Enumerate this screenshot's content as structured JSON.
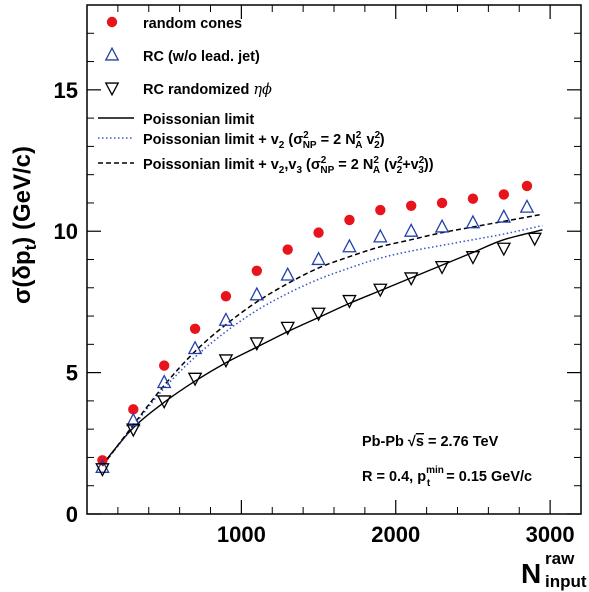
{
  "chart_data": {
    "type": "scatter",
    "xlim": [
      0,
      3200
    ],
    "ylim": [
      0,
      18
    ],
    "x_ticks": [
      1000,
      2000,
      3000
    ],
    "x_tick_labels": [
      "1000",
      "2000",
      "3000"
    ],
    "y_ticks": [
      0,
      5,
      10,
      15
    ],
    "y_tick_labels": [
      "0",
      "5",
      "10",
      "15"
    ],
    "ylabel": {
      "main": "σ(δp",
      "sub": "t",
      "tail": ") (GeV/c)"
    },
    "xlabel": {
      "main": "N",
      "sup": "raw",
      "sub": "input"
    },
    "series": [
      {
        "name": "random cones",
        "kind": "marker",
        "marker": "filled-circle",
        "color": "#e8141c",
        "x": [
          100,
          300,
          500,
          700,
          900,
          1100,
          1300,
          1500,
          1700,
          1900,
          2100,
          2300,
          2500,
          2700,
          2850
        ],
        "y": [
          1.9,
          3.7,
          5.25,
          6.55,
          7.7,
          8.6,
          9.35,
          9.95,
          10.4,
          10.75,
          10.9,
          11.0,
          11.15,
          11.3,
          11.6
        ]
      },
      {
        "name": "RC (w/o lead. jet)",
        "kind": "marker",
        "marker": "open-triangle-up",
        "color": "#2440a8",
        "x": [
          100,
          300,
          500,
          700,
          900,
          1100,
          1300,
          1500,
          1700,
          1900,
          2100,
          2300,
          2500,
          2700,
          2850
        ],
        "y": [
          1.65,
          3.3,
          4.65,
          5.85,
          6.85,
          7.75,
          8.45,
          9.0,
          9.45,
          9.8,
          10.0,
          10.15,
          10.3,
          10.5,
          10.85
        ]
      },
      {
        "name": "RC randomized ηϕ",
        "name_prefix": "RC randomized ",
        "name_symbol": "ηϕ",
        "kind": "marker",
        "marker": "open-triangle-down",
        "color": "#000000",
        "x": [
          100,
          300,
          500,
          700,
          900,
          1100,
          1300,
          1500,
          1700,
          1900,
          2100,
          2300,
          2500,
          2700,
          2900
        ],
        "y": [
          1.6,
          3.0,
          4.0,
          4.8,
          5.45,
          6.05,
          6.6,
          7.1,
          7.55,
          7.95,
          8.35,
          8.75,
          9.1,
          9.4,
          9.75
        ]
      },
      {
        "name": "Poissonian limit",
        "kind": "line",
        "style": "solid",
        "color": "#000000",
        "x": [
          100,
          300,
          500,
          700,
          900,
          1100,
          1300,
          1500,
          1700,
          1900,
          2100,
          2300,
          2500,
          2700,
          2950
        ],
        "y": [
          1.75,
          3.05,
          3.95,
          4.7,
          5.35,
          5.9,
          6.45,
          6.95,
          7.45,
          7.9,
          8.35,
          8.8,
          9.25,
          9.7,
          10.05
        ]
      },
      {
        "name": "Poissonian limit + v2 (σ²NP = 2 N²A v²2)",
        "kind": "line",
        "style": "dotted",
        "color": "#3355cc",
        "x": [
          100,
          300,
          500,
          700,
          900,
          1100,
          1300,
          1500,
          1700,
          1900,
          2100,
          2300,
          2500,
          2700,
          2950
        ],
        "y": [
          1.7,
          3.1,
          4.45,
          5.55,
          6.45,
          7.2,
          7.8,
          8.3,
          8.7,
          9.05,
          9.3,
          9.5,
          9.7,
          9.9,
          10.2
        ]
      },
      {
        "name": "Poissonian limit + v2,v3 (σ²NP = 2 N²A (v²2+v²3))",
        "kind": "line",
        "style": "dashed",
        "color": "#000000",
        "x": [
          100,
          300,
          500,
          700,
          900,
          1100,
          1300,
          1500,
          1700,
          1900,
          2100,
          2300,
          2500,
          2700,
          2950
        ],
        "y": [
          1.7,
          3.15,
          4.55,
          5.75,
          6.7,
          7.5,
          8.15,
          8.7,
          9.1,
          9.45,
          9.7,
          9.95,
          10.15,
          10.35,
          10.6
        ]
      }
    ],
    "legend": [
      {
        "text": "random cones",
        "marker": "filled-circle",
        "color": "#e8141c"
      },
      {
        "text": "RC (w/o lead. jet)",
        "marker": "open-triangle-up",
        "color": "#2440a8"
      },
      {
        "text": "RC randomized ",
        "symbol": "ηϕ",
        "marker": "open-triangle-down",
        "color": "#000000"
      },
      {
        "text": "Poissonian limit",
        "line": "solid",
        "color": "#000000"
      },
      {
        "text": "Poissonian limit + v",
        "line": "dotted",
        "color": "#3355cc",
        "formula": {
          "v_sub": "2",
          "open": " (σ",
          "sig_sup": "2",
          "sig_sub": "NP",
          "eq": " = 2 N",
          "n_sup": "2",
          "n_sub": "A",
          "rest": " v",
          "v2_sup": "2",
          "v2_sub": "2",
          "close": ")"
        }
      },
      {
        "text": "Poissonian limit + v",
        "line": "dashed",
        "color": "#000000",
        "formula": {
          "v_sub": "2",
          "mid": ",v",
          "v3_sub": "3",
          "open": " (σ",
          "sig_sup": "2",
          "sig_sub": "NP",
          "eq": " = 2 N",
          "n_sup": "2",
          "n_sub": "A",
          "paren": " (v",
          "a_sup": "2",
          "a_sub": "2",
          "plus": "+v",
          "b_sup": "2",
          "b_sub": "3",
          "close": "))"
        }
      }
    ],
    "annotations": {
      "line1": {
        "pre": "Pb-Pb ",
        "root": "√",
        "s": "s",
        "post": " = 2.76 TeV"
      },
      "line2": {
        "pre": "R = 0.4, p",
        "sup": "min",
        "sub": "t",
        "post": " = 0.15 GeV/c"
      }
    },
    "grid": false,
    "legend_placement": "top-left"
  }
}
